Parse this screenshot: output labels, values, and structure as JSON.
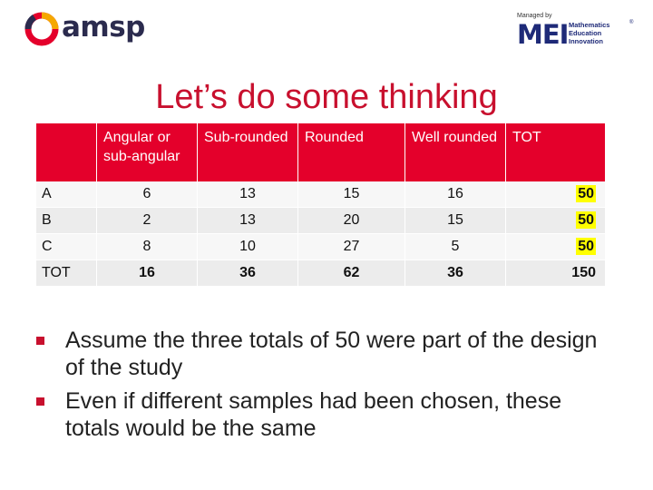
{
  "logos": {
    "amsp": "amsp",
    "mei_managed": "Managed by",
    "mei": "MEI",
    "mei_lines": [
      "Mathematics",
      "Education",
      "Innovation"
    ],
    "mei_reg": "®"
  },
  "title": "Let’s do some thinking",
  "table": {
    "headers": [
      "",
      "Angular or sub-angular",
      "Sub-rounded",
      "Rounded",
      "Well rounded",
      "TOT"
    ],
    "rows": [
      {
        "label": "A",
        "cells": [
          "6",
          "13",
          "15",
          "16",
          "50"
        ]
      },
      {
        "label": "B",
        "cells": [
          "2",
          "13",
          "20",
          "15",
          "50"
        ]
      },
      {
        "label": "C",
        "cells": [
          "8",
          "10",
          "27",
          "5",
          "50"
        ]
      },
      {
        "label": "TOT",
        "cells": [
          "16",
          "36",
          "62",
          "36",
          "150"
        ]
      }
    ]
  },
  "bullets": [
    "Assume the three totals of 50 were part of the design of the study",
    "Even if different samples had been chosen, these totals would be the same"
  ],
  "colors": {
    "title": "#c8102e",
    "header_bg": "#e4002b",
    "highlight": "#ffff00",
    "bullet": "#c8102e"
  }
}
